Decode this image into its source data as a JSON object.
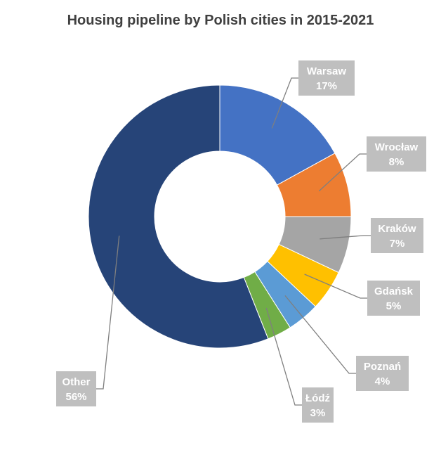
{
  "chart_data": {
    "type": "pie",
    "variant": "donut",
    "title": "Housing pipeline by Polish cities in 2015-2021",
    "categories": [
      "Warsaw",
      "Wrocław",
      "Kraków",
      "Gdańsk",
      "Poznań",
      "Łódź",
      "Other"
    ],
    "values": [
      17,
      8,
      7,
      5,
      4,
      3,
      56
    ],
    "value_labels": [
      "17%",
      "8%",
      "7%",
      "5%",
      "4%",
      "3%",
      "56%"
    ],
    "colors": [
      "#4472c4",
      "#ed7d31",
      "#a5a5a5",
      "#ffc000",
      "#5b9bd5",
      "#70ad47",
      "#264478"
    ],
    "label_box_color": "#bfbfbf",
    "label_text_color": "#ffffff",
    "leader_line_color": "#7f7f7f",
    "legend": "none",
    "start_angle": "12 o'clock",
    "direction": "clockwise"
  }
}
